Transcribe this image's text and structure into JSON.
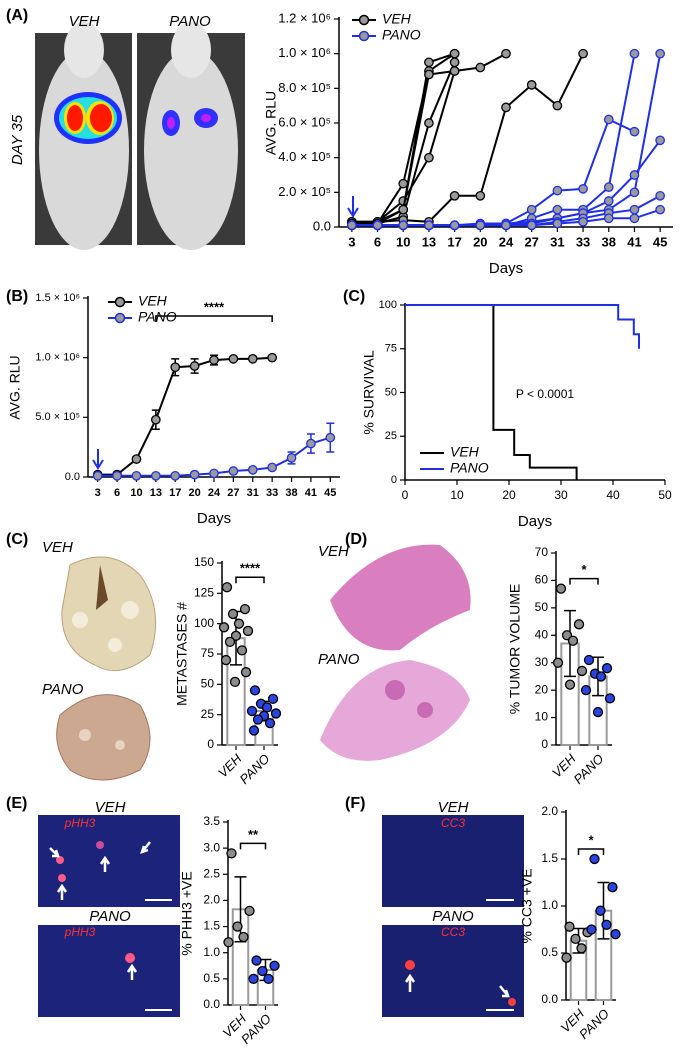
{
  "panel_labels": [
    "(A)",
    "(B)",
    "(C)",
    "(C)",
    "(D)",
    "(E)",
    "(F)"
  ],
  "images": {
    "A": [
      "VEH",
      "PANO",
      "DAY 35"
    ],
    "C": [
      "VEH",
      "PANO"
    ],
    "D": [
      "VEH",
      "PANO"
    ],
    "E": [
      "VEH",
      "pHH3",
      "PANO",
      "pHH3"
    ],
    "F": [
      "VEH",
      "CC3",
      "PANO",
      "CC3"
    ]
  },
  "chart_data": [
    {
      "type": "line",
      "ylabel": "AVG. RLU",
      "xlabel": "Days",
      "categories": [
        "3",
        "6",
        "10",
        "13",
        "17",
        "20",
        "24",
        "27",
        "31",
        "33",
        "38",
        "41",
        "45"
      ],
      "ylim": [
        0,
        1200000
      ],
      "yticks": [
        {
          "value": 0,
          "label": "0.0"
        },
        {
          "value": 200000,
          "label": "2.0 × 10⁵"
        },
        {
          "value": 400000,
          "label": "4.0 × 10⁵"
        },
        {
          "value": 600000,
          "label": "6.0 × 10⁵"
        },
        {
          "value": 800000,
          "label": "8.0 × 10⁵"
        },
        {
          "value": 1000000,
          "label": "1.0 × 10⁶"
        },
        {
          "value": 1200000,
          "label": "1.2 × 10⁶"
        }
      ],
      "series": [
        {
          "name": "VEH",
          "color": "#000000",
          "lines": [
            [
              30000,
              30000,
              100000,
              950000,
              1000000,
              null,
              null,
              null,
              null,
              null,
              null,
              null,
              null
            ],
            [
              20000,
              20000,
              250000,
              900000,
              1000000,
              null,
              null,
              null,
              null,
              null,
              null,
              null,
              null
            ],
            [
              20000,
              20000,
              60000,
              600000,
              950000,
              null,
              null,
              null,
              null,
              null,
              null,
              null,
              null
            ],
            [
              20000,
              30000,
              150000,
              400000,
              900000,
              null,
              null,
              null,
              null,
              null,
              null,
              null,
              null
            ],
            [
              30000,
              30000,
              40000,
              30000,
              180000,
              180000,
              690000,
              820000,
              700000,
              1000000,
              null,
              null,
              null
            ],
            [
              20000,
              20000,
              100000,
              880000,
              900000,
              920000,
              1000000,
              null,
              null,
              null,
              null,
              null,
              null
            ]
          ]
        },
        {
          "name": "PANO",
          "color": "#1f2fe6",
          "lines": [
            [
              10000,
              10000,
              10000,
              10000,
              10000,
              20000,
              20000,
              100000,
              210000,
              220000,
              620000,
              550000,
              null
            ],
            [
              10000,
              10000,
              10000,
              10000,
              10000,
              10000,
              20000,
              30000,
              50000,
              80000,
              100000,
              200000,
              1000000
            ],
            [
              10000,
              10000,
              10000,
              10000,
              10000,
              10000,
              10000,
              50000,
              100000,
              100000,
              230000,
              1000000,
              null
            ],
            [
              10000,
              10000,
              10000,
              10000,
              10000,
              10000,
              10000,
              20000,
              50000,
              80000,
              150000,
              300000,
              500000
            ],
            [
              10000,
              10000,
              10000,
              10000,
              10000,
              10000,
              10000,
              10000,
              30000,
              50000,
              80000,
              100000,
              180000
            ],
            [
              10000,
              10000,
              10000,
              10000,
              10000,
              10000,
              10000,
              10000,
              20000,
              30000,
              50000,
              50000,
              100000
            ]
          ]
        }
      ]
    },
    {
      "type": "line",
      "ylabel": "AVG. RLU",
      "xlabel": "Days",
      "annotation": "****",
      "categories": [
        "3",
        "6",
        "10",
        "13",
        "17",
        "20",
        "24",
        "27",
        "31",
        "33",
        "38",
        "41",
        "45"
      ],
      "ylim": [
        0,
        1500000
      ],
      "yticks": [
        {
          "value": 0,
          "label": "0.0"
        },
        {
          "value": 500000,
          "label": "5.0 × 10⁵"
        },
        {
          "value": 1000000,
          "label": "1.0 × 10⁶"
        },
        {
          "value": 1500000,
          "label": "1.5 × 10⁶"
        }
      ],
      "series": [
        {
          "name": "VEH",
          "color": "#000000",
          "values": [
            20000,
            20000,
            150000,
            480000,
            920000,
            930000,
            980000,
            990000,
            990000,
            1000000,
            null,
            null,
            null
          ],
          "errors": [
            null,
            null,
            20000,
            80000,
            70000,
            60000,
            40000,
            null,
            null,
            null,
            null,
            null,
            null
          ]
        },
        {
          "name": "PANO",
          "color": "#1f2fe6",
          "values": [
            10000,
            10000,
            10000,
            10000,
            10000,
            20000,
            30000,
            50000,
            60000,
            80000,
            160000,
            280000,
            330000
          ],
          "errors": [
            null,
            null,
            null,
            null,
            null,
            null,
            null,
            null,
            null,
            null,
            50000,
            80000,
            120000
          ]
        }
      ]
    },
    {
      "type": "step",
      "ylabel": "% SURVIVAL",
      "xlabel": "Days",
      "annotation": "P < 0.0001",
      "xlim": [
        0,
        50
      ],
      "xticks": [
        0,
        10,
        20,
        30,
        40,
        50
      ],
      "ylim": [
        0,
        100
      ],
      "yticks": [
        0,
        25,
        50,
        75,
        100
      ],
      "series": [
        {
          "name": "VEH",
          "color": "#000000",
          "x": [
            0,
            17,
            21,
            24,
            33
          ],
          "values": [
            100,
            28.6,
            14.3,
            7.1,
            0
          ]
        },
        {
          "name": "PANO",
          "color": "#1f2fe6",
          "x": [
            0,
            41,
            44,
            45
          ],
          "values": [
            100,
            91.7,
            83.3,
            75
          ]
        }
      ]
    },
    {
      "type": "bar",
      "ylabel": "METASTASES #",
      "annotation": "****",
      "categories": [
        "VEH",
        "PANO"
      ],
      "colors": [
        "#8c8c8c",
        "#2a44e0"
      ],
      "values": [
        88,
        28
      ],
      "errors": [
        22,
        8
      ],
      "points": [
        [
          130,
          112,
          108,
          100,
          97,
          94,
          90,
          85,
          78,
          70,
          60,
          52
        ],
        [
          45,
          38,
          34,
          31,
          28,
          26,
          24,
          21,
          18,
          12
        ]
      ],
      "ylim": [
        0,
        150
      ],
      "yticks": [
        0,
        25,
        50,
        75,
        100,
        125,
        150
      ]
    },
    {
      "type": "bar",
      "ylabel": "% TUMOR VOLUME",
      "annotation": "*",
      "categories": [
        "VEH",
        "PANO"
      ],
      "colors": [
        "#8c8c8c",
        "#2a44e0"
      ],
      "values": [
        37,
        25
      ],
      "errors": [
        12,
        7
      ],
      "points": [
        [
          57,
          44,
          40,
          38,
          30,
          27,
          22
        ],
        [
          31,
          28,
          26,
          25,
          20,
          17,
          12
        ]
      ],
      "ylim": [
        0,
        70
      ],
      "yticks": [
        0,
        10,
        20,
        30,
        40,
        50,
        60,
        70
      ]
    },
    {
      "type": "bar",
      "ylabel": "% PHH3 +VE",
      "annotation": "**",
      "categories": [
        "VEH",
        "PANO"
      ],
      "colors": [
        "#8c8c8c",
        "#2a44e0"
      ],
      "values": [
        1.83,
        0.67
      ],
      "errors": [
        0.62,
        0.2
      ],
      "points": [
        [
          2.9,
          1.8,
          1.5,
          1.3,
          1.2
        ],
        [
          0.85,
          0.75,
          0.65,
          0.5,
          0.5
        ]
      ],
      "ylim": [
        0,
        3.5
      ],
      "yticks": [
        {
          "value": 0,
          "label": "0.0"
        },
        0.5,
        {
          "value": 1,
          "label": "1.0"
        },
        1.5,
        {
          "value": 2,
          "label": "2.0"
        },
        2.5,
        {
          "value": 3,
          "label": "3.0"
        },
        3.5
      ]
    },
    {
      "type": "bar",
      "ylabel": "% CC3 +VE",
      "annotation": "*",
      "categories": [
        "VEH",
        "PANO"
      ],
      "colors": [
        "#8c8c8c",
        "#2a44e0"
      ],
      "values": [
        0.63,
        0.95
      ],
      "errors": [
        0.13,
        0.3
      ],
      "points": [
        [
          0.78,
          0.72,
          0.65,
          0.55,
          0.45
        ],
        [
          1.5,
          1.2,
          0.95,
          0.8,
          0.75,
          0.7
        ]
      ],
      "ylim": [
        0,
        2
      ],
      "yticks": [
        {
          "value": 0,
          "label": "0.0"
        },
        0.5,
        {
          "value": 1,
          "label": "1.0"
        },
        1.5,
        {
          "value": 2,
          "label": "2.0"
        }
      ]
    }
  ]
}
